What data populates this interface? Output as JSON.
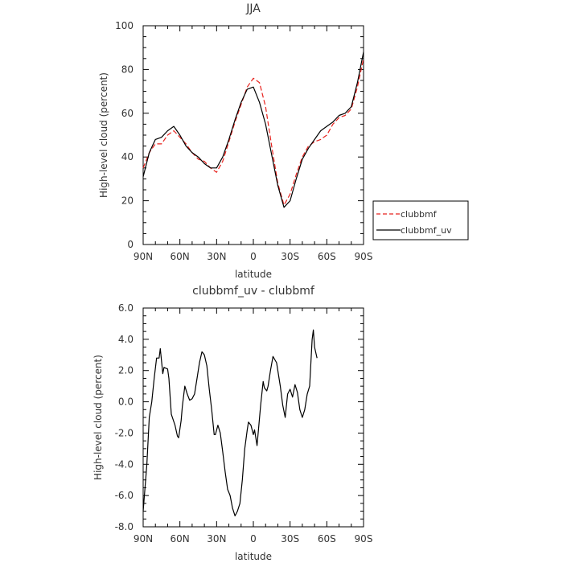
{
  "chart_data": [
    {
      "type": "line",
      "title": "JJA",
      "xlabel": "latitude",
      "ylabel": "High-level cloud (percent)",
      "xlim": [
        90,
        -90
      ],
      "ylim": [
        0,
        100
      ],
      "xticks": [
        {
          "value": 90,
          "label": "90N"
        },
        {
          "value": 60,
          "label": "60N"
        },
        {
          "value": 30,
          "label": "30N"
        },
        {
          "value": 0,
          "label": "0"
        },
        {
          "value": -30,
          "label": "30S"
        },
        {
          "value": -60,
          "label": "60S"
        },
        {
          "value": -90,
          "label": "90S"
        }
      ],
      "yticks": [
        {
          "value": 0,
          "label": "0"
        },
        {
          "value": 20,
          "label": "20"
        },
        {
          "value": 40,
          "label": "40"
        },
        {
          "value": 60,
          "label": "60"
        },
        {
          "value": 80,
          "label": "80"
        },
        {
          "value": 100,
          "label": "100"
        }
      ],
      "legend": {
        "placement": "right",
        "entries": [
          "clubbmf",
          "clubbmf_uv"
        ]
      },
      "series": [
        {
          "name": "clubbmf",
          "color": "#e8231e",
          "dash": "dashed",
          "points": [
            [
              90,
              35
            ],
            [
              85,
              42
            ],
            [
              80,
              46
            ],
            [
              75,
              46
            ],
            [
              70,
              50
            ],
            [
              65,
              52
            ],
            [
              60,
              49
            ],
            [
              55,
              46
            ],
            [
              50,
              42
            ],
            [
              45,
              39
            ],
            [
              40,
              38
            ],
            [
              35,
              35
            ],
            [
              30,
              33
            ],
            [
              25,
              38
            ],
            [
              20,
              47
            ],
            [
              15,
              56
            ],
            [
              10,
              64
            ],
            [
              5,
              72
            ],
            [
              0,
              76
            ],
            [
              -5,
              74
            ],
            [
              -10,
              63
            ],
            [
              -15,
              45
            ],
            [
              -20,
              28
            ],
            [
              -25,
              18
            ],
            [
              -30,
              23
            ],
            [
              -35,
              32
            ],
            [
              -40,
              40
            ],
            [
              -45,
              45
            ],
            [
              -50,
              47
            ],
            [
              -55,
              48
            ],
            [
              -60,
              50
            ],
            [
              -65,
              55
            ],
            [
              -70,
              58
            ],
            [
              -75,
              59
            ],
            [
              -80,
              62
            ],
            [
              -85,
              72
            ],
            [
              -90,
              85
            ]
          ]
        },
        {
          "name": "clubbmf_uv",
          "color": "#000000",
          "dash": "solid",
          "points": [
            [
              90,
              31
            ],
            [
              85,
              42
            ],
            [
              80,
              48
            ],
            [
              75,
              49
            ],
            [
              70,
              52
            ],
            [
              65,
              54
            ],
            [
              60,
              50
            ],
            [
              55,
              45
            ],
            [
              50,
              42
            ],
            [
              45,
              40
            ],
            [
              40,
              37
            ],
            [
              35,
              35
            ],
            [
              30,
              35
            ],
            [
              25,
              40
            ],
            [
              20,
              48
            ],
            [
              15,
              57
            ],
            [
              10,
              65
            ],
            [
              5,
              71
            ],
            [
              0,
              72
            ],
            [
              -5,
              65
            ],
            [
              -10,
              55
            ],
            [
              -15,
              41
            ],
            [
              -20,
              27
            ],
            [
              -25,
              17
            ],
            [
              -30,
              20
            ],
            [
              -35,
              30
            ],
            [
              -40,
              39
            ],
            [
              -45,
              44
            ],
            [
              -50,
              48
            ],
            [
              -55,
              52
            ],
            [
              -60,
              54
            ],
            [
              -65,
              56
            ],
            [
              -70,
              59
            ],
            [
              -75,
              60
            ],
            [
              -80,
              63
            ],
            [
              -85,
              74
            ],
            [
              -90,
              88
            ]
          ]
        }
      ]
    },
    {
      "type": "line",
      "title": "clubbmf_uv - clubbmf",
      "xlabel": "latitude",
      "ylabel": "High-level cloud (percent)",
      "xlim": [
        90,
        -90
      ],
      "ylim": [
        -8,
        6
      ],
      "xticks": [
        {
          "value": 90,
          "label": "90N"
        },
        {
          "value": 60,
          "label": "60N"
        },
        {
          "value": 30,
          "label": "30N"
        },
        {
          "value": 0,
          "label": "0"
        },
        {
          "value": -30,
          "label": "30S"
        },
        {
          "value": -60,
          "label": "60S"
        },
        {
          "value": -90,
          "label": "90S"
        }
      ],
      "yticks": [
        {
          "value": -8,
          "label": "-8.0"
        },
        {
          "value": -6,
          "label": "-6.0"
        },
        {
          "value": -4,
          "label": "-4.0"
        },
        {
          "value": -2,
          "label": "-2.0"
        },
        {
          "value": 0,
          "label": "0.0"
        },
        {
          "value": 2,
          "label": "2.0"
        },
        {
          "value": 4,
          "label": "4.0"
        },
        {
          "value": 6,
          "label": "6.0"
        }
      ],
      "series": [
        {
          "color": "#000000",
          "dash": "solid",
          "points": [
            [
              90,
              -7.0
            ],
            [
              87,
              -4.0
            ],
            [
              85,
              -1.0
            ],
            [
              83,
              0.0
            ],
            [
              81,
              1.5
            ],
            [
              79,
              2.8
            ],
            [
              77,
              2.8
            ],
            [
              76,
              3.4
            ],
            [
              74,
              1.8
            ],
            [
              73,
              2.2
            ],
            [
              70,
              2.1
            ],
            [
              69,
              1.5
            ],
            [
              67,
              -0.8
            ],
            [
              64,
              -1.5
            ],
            [
              62,
              -2.2
            ],
            [
              61,
              -2.3
            ],
            [
              59,
              -1.2
            ],
            [
              58,
              -0.3
            ],
            [
              56,
              1.0
            ],
            [
              54,
              0.5
            ],
            [
              52,
              0.1
            ],
            [
              50,
              0.2
            ],
            [
              48,
              0.5
            ],
            [
              46,
              1.5
            ],
            [
              44,
              2.5
            ],
            [
              42,
              3.2
            ],
            [
              40,
              3.0
            ],
            [
              38,
              2.3
            ],
            [
              36,
              0.8
            ],
            [
              34,
              -0.5
            ],
            [
              32,
              -2.1
            ],
            [
              31,
              -2.1
            ],
            [
              29,
              -1.5
            ],
            [
              27,
              -2.0
            ],
            [
              25,
              -3.2
            ],
            [
              23,
              -4.5
            ],
            [
              21,
              -5.6
            ],
            [
              19,
              -6.0
            ],
            [
              17,
              -6.8
            ],
            [
              15,
              -7.3
            ],
            [
              13,
              -7.0
            ],
            [
              11,
              -6.5
            ],
            [
              9,
              -5.0
            ],
            [
              7,
              -3.0
            ],
            [
              5,
              -1.8
            ],
            [
              4,
              -1.3
            ],
            [
              2,
              -1.5
            ],
            [
              0,
              -2.1
            ],
            [
              -1,
              -1.8
            ],
            [
              -3,
              -2.8
            ],
            [
              -6,
              -0.2
            ],
            [
              -8,
              1.3
            ],
            [
              -9,
              0.9
            ],
            [
              -11,
              0.7
            ],
            [
              -12,
              1.0
            ],
            [
              -14,
              2.0
            ],
            [
              -16,
              2.9
            ],
            [
              -19,
              2.5
            ],
            [
              -22,
              1.0
            ],
            [
              -24,
              -0.2
            ],
            [
              -26,
              -1.0
            ],
            [
              -28,
              0.5
            ],
            [
              -30,
              0.8
            ],
            [
              -32,
              0.3
            ],
            [
              -34,
              1.1
            ],
            [
              -36,
              0.6
            ],
            [
              -38,
              -0.5
            ],
            [
              -40,
              -1.0
            ],
            [
              -42,
              -0.5
            ],
            [
              -44,
              0.5
            ],
            [
              -46,
              1.0
            ],
            [
              -48,
              4.0
            ],
            [
              -49,
              4.6
            ],
            [
              -50,
              3.5
            ],
            [
              -52,
              2.8
            ]
          ]
        }
      ]
    }
  ]
}
